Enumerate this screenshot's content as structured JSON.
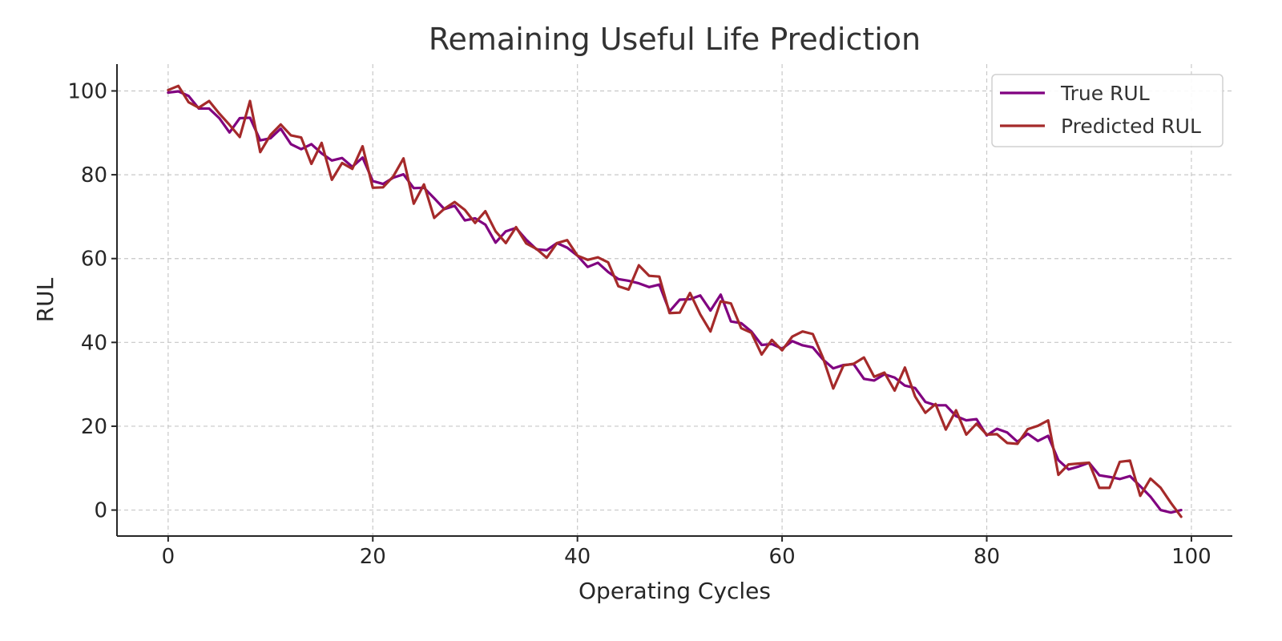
{
  "chart_data": {
    "type": "line",
    "title": "Remaining Useful Life Prediction",
    "xlabel": "Operating Cycles",
    "ylabel": "RUL",
    "xlim": [
      -5,
      104
    ],
    "ylim": [
      -6.2,
      106.4
    ],
    "xticks": [
      0,
      20,
      40,
      60,
      80,
      100
    ],
    "yticks": [
      0,
      20,
      40,
      60,
      80,
      100
    ],
    "grid": true,
    "legend_position": "top-right",
    "series": [
      {
        "name": "True RUL",
        "color": "#800080",
        "x": [
          0,
          1,
          2,
          3,
          4,
          5,
          6,
          7,
          8,
          9,
          10,
          11,
          12,
          13,
          14,
          15,
          16,
          17,
          18,
          19,
          20,
          21,
          22,
          23,
          24,
          25,
          26,
          27,
          28,
          29,
          30,
          31,
          32,
          33,
          34,
          35,
          36,
          37,
          38,
          39,
          40,
          41,
          42,
          43,
          44,
          45,
          46,
          47,
          48,
          49,
          50,
          51,
          52,
          53,
          54,
          55,
          56,
          57,
          58,
          59,
          60,
          61,
          62,
          63,
          64,
          65,
          66,
          67,
          68,
          69,
          70,
          71,
          72,
          73,
          74,
          75,
          76,
          77,
          78,
          79,
          80,
          81,
          82,
          83,
          84,
          85,
          86,
          87,
          88,
          89,
          90,
          91,
          92,
          93,
          94,
          95,
          96,
          97,
          98,
          99
        ],
        "values": [
          99.6,
          99.9,
          98.8,
          95.8,
          95.8,
          93.5,
          90.1,
          93.5,
          93.6,
          88.2,
          88.7,
          91.0,
          87.3,
          86.1,
          87.3,
          85.1,
          83.4,
          84.0,
          81.9,
          84.1,
          78.5,
          77.8,
          79.3,
          80.1,
          76.8,
          76.9,
          74.4,
          71.8,
          72.6,
          69.1,
          69.6,
          68.1,
          63.8,
          66.5,
          67.3,
          64.5,
          62.2,
          62.0,
          63.7,
          62.6,
          60.7,
          58.0,
          59.0,
          56.8,
          55.1,
          54.7,
          54.1,
          53.2,
          53.8,
          47.4,
          50.2,
          50.3,
          51.2,
          47.6,
          51.4,
          45.0,
          44.6,
          42.6,
          39.4,
          39.6,
          38.5,
          40.3,
          39.3,
          38.8,
          35.9,
          33.8,
          34.6,
          34.8,
          31.3,
          30.9,
          32.4,
          31.6,
          29.7,
          29.1,
          25.8,
          25.0,
          25.0,
          22.4,
          21.4,
          21.7,
          17.8,
          19.4,
          18.5,
          16.3,
          18.2,
          16.5,
          17.7,
          11.9,
          9.7,
          10.4,
          11.3,
          8.3,
          7.9,
          7.4,
          8.1,
          5.7,
          3.2,
          0.0,
          -0.6,
          0.0
        ]
      },
      {
        "name": "Predicted RUL",
        "color": "#a52a2a",
        "x": [
          0,
          1,
          2,
          3,
          4,
          5,
          6,
          7,
          8,
          9,
          10,
          11,
          12,
          13,
          14,
          15,
          16,
          17,
          18,
          19,
          20,
          21,
          22,
          23,
          24,
          25,
          26,
          27,
          28,
          29,
          30,
          31,
          32,
          33,
          34,
          35,
          36,
          37,
          38,
          39,
          40,
          41,
          42,
          43,
          44,
          45,
          46,
          47,
          48,
          49,
          50,
          51,
          52,
          53,
          54,
          55,
          56,
          57,
          58,
          59,
          60,
          61,
          62,
          63,
          64,
          65,
          66,
          67,
          68,
          69,
          70,
          71,
          72,
          73,
          74,
          75,
          76,
          77,
          78,
          79,
          80,
          81,
          82,
          83,
          84,
          85,
          86,
          87,
          88,
          89,
          90,
          91,
          92,
          93,
          94,
          95,
          96,
          97,
          98,
          99
        ],
        "values": [
          100.2,
          101.2,
          97.3,
          96.0,
          97.6,
          94.6,
          91.9,
          89.0,
          97.6,
          85.4,
          89.5,
          92.0,
          89.4,
          88.9,
          82.6,
          87.6,
          78.8,
          82.8,
          81.4,
          86.8,
          76.9,
          77.0,
          79.6,
          83.9,
          73.1,
          77.7,
          69.7,
          71.9,
          73.5,
          71.6,
          68.5,
          71.3,
          66.5,
          63.7,
          67.5,
          63.6,
          62.3,
          60.2,
          63.7,
          64.4,
          60.7,
          59.7,
          60.3,
          59.1,
          53.4,
          52.6,
          58.4,
          55.9,
          55.7,
          47.0,
          47.1,
          51.8,
          46.7,
          42.6,
          49.8,
          49.3,
          43.4,
          42.3,
          37.1,
          40.6,
          38.1,
          41.4,
          42.6,
          42.0,
          36.3,
          29.0,
          34.5,
          34.9,
          36.4,
          31.8,
          32.8,
          28.5,
          34.0,
          27.1,
          23.2,
          25.3,
          19.2,
          23.8,
          18.0,
          20.6,
          18.0,
          18.1,
          16.0,
          15.8,
          19.3,
          20.1,
          21.4,
          8.4,
          10.9,
          11.1,
          11.3,
          5.3,
          5.3,
          11.5,
          11.8,
          3.4,
          7.5,
          5.3,
          1.7,
          -1.6
        ]
      }
    ]
  }
}
